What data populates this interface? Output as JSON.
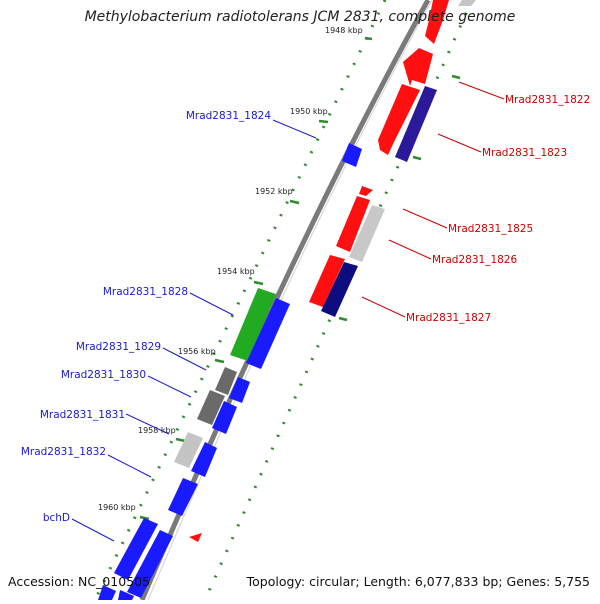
{
  "title": "Methylobacterium radiotolerans JCM 2831, complete genome",
  "footer": {
    "accession": "Accession: NC_010505",
    "summary": "Topology: circular; Length: 6,077,833 bp; Genes: 5,755"
  },
  "colors": {
    "backbone": "#777777",
    "tick": "#2e8b2e",
    "blue": "#1a1aff",
    "red": "#ff0f0f",
    "navy": "#0d0d80",
    "green": "#22aa22",
    "dark_gray": "#6a6a6a",
    "light_gray": "#c4c4c4",
    "label_blue": "#1a1acc",
    "label_red": "#cc0000"
  },
  "scale_labels": [
    "1948 kbp",
    "1950 kbp",
    "1952 kbp",
    "1954 kbp",
    "1956 kbp",
    "1958 kbp",
    "1960 kbp"
  ],
  "gene_labels": {
    "left": [
      "Mrad2831_1824",
      "Mrad2831_1828",
      "Mrad2831_1829",
      "Mrad2831_1830",
      "Mrad2831_1831",
      "Mrad2831_1832",
      "bchD"
    ],
    "right": [
      "Mrad2831_1822",
      "Mrad2831_1823",
      "Mrad2831_1825",
      "Mrad2831_1826",
      "Mrad2831_1827"
    ]
  }
}
